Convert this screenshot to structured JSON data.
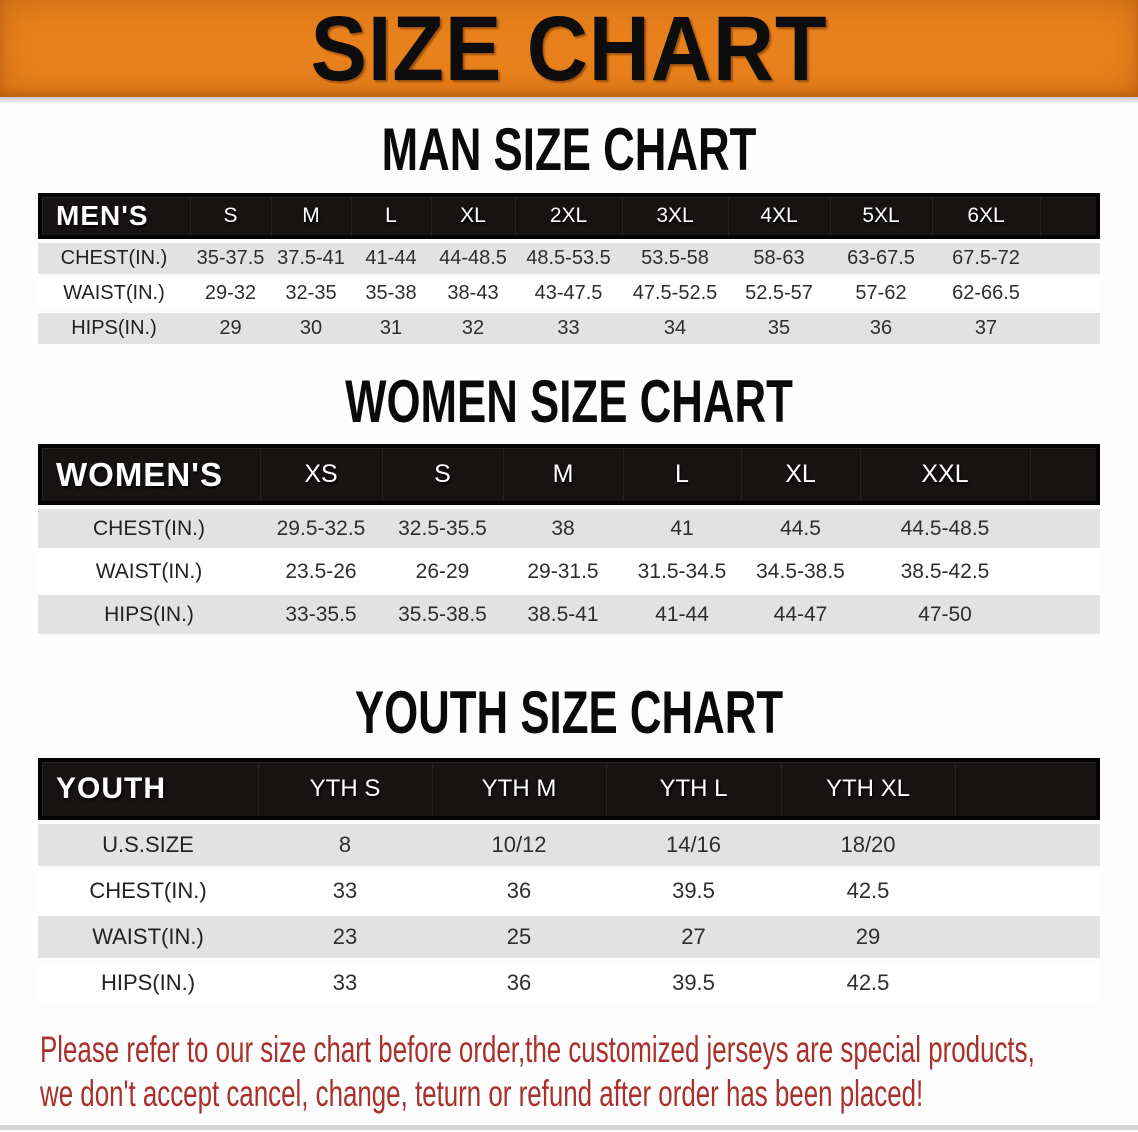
{
  "banner": {
    "title": "SIZE CHART"
  },
  "colors": {
    "banner_orange": "#E8811C",
    "table_header_black": "#171313",
    "row_stripe_gray": "#E2E2E2",
    "notice_red": "#A9302B",
    "title_black": "#0A0A0A"
  },
  "sections": {
    "men": {
      "title": "MAN SIZE CHART",
      "corner": "MEN'S",
      "sizes": [
        "S",
        "M",
        "L",
        "XL",
        "2XL",
        "3XL",
        "4XL",
        "5XL",
        "6XL"
      ],
      "rows": [
        {
          "label": "CHEST(IN.)",
          "values": [
            "35-37.5",
            "37.5-41",
            "41-44",
            "44-48.5",
            "48.5-53.5",
            "53.5-58",
            "58-63",
            "63-67.5",
            "67.5-72"
          ]
        },
        {
          "label": "WAIST(IN.)",
          "values": [
            "29-32",
            "32-35",
            "35-38",
            "38-43",
            "43-47.5",
            "47.5-52.5",
            "52.5-57",
            "57-62",
            "62-66.5"
          ]
        },
        {
          "label": "HIPS(IN.)",
          "values": [
            "29",
            "30",
            "31",
            "32",
            "33",
            "34",
            "35",
            "36",
            "37"
          ]
        }
      ]
    },
    "women": {
      "title": "WOMEN SIZE CHART",
      "corner": "WOMEN'S",
      "sizes": [
        "XS",
        "S",
        "M",
        "L",
        "XL",
        "XXL"
      ],
      "rows": [
        {
          "label": "CHEST(IN.)",
          "values": [
            "29.5-32.5",
            "32.5-35.5",
            "38",
            "41",
            "44.5",
            "44.5-48.5"
          ]
        },
        {
          "label": "WAIST(IN.)",
          "values": [
            "23.5-26",
            "26-29",
            "29-31.5",
            "31.5-34.5",
            "34.5-38.5",
            "38.5-42.5"
          ]
        },
        {
          "label": "HIPS(IN.)",
          "values": [
            "33-35.5",
            "35.5-38.5",
            "38.5-41",
            "41-44",
            "44-47",
            "47-50"
          ]
        }
      ]
    },
    "youth": {
      "title": "YOUTH SIZE CHART",
      "corner": "YOUTH",
      "sizes": [
        "YTH S",
        "YTH M",
        "YTH L",
        "YTH XL"
      ],
      "rows": [
        {
          "label": "U.S.SIZE",
          "values": [
            "8",
            "10/12",
            "14/16",
            "18/20"
          ]
        },
        {
          "label": "CHEST(IN.)",
          "values": [
            "33",
            "36",
            "39.5",
            "42.5"
          ]
        },
        {
          "label": "WAIST(IN.)",
          "values": [
            "23",
            "25",
            "27",
            "29"
          ]
        },
        {
          "label": "HIPS(IN.)",
          "values": [
            "33",
            "36",
            "39.5",
            "42.5"
          ]
        }
      ]
    }
  },
  "notice": {
    "line1": "Please refer to our size chart before order,the customized jerseys are special products,",
    "line2": "we don't accept cancel, change, teturn or refund after order has been placed!"
  }
}
